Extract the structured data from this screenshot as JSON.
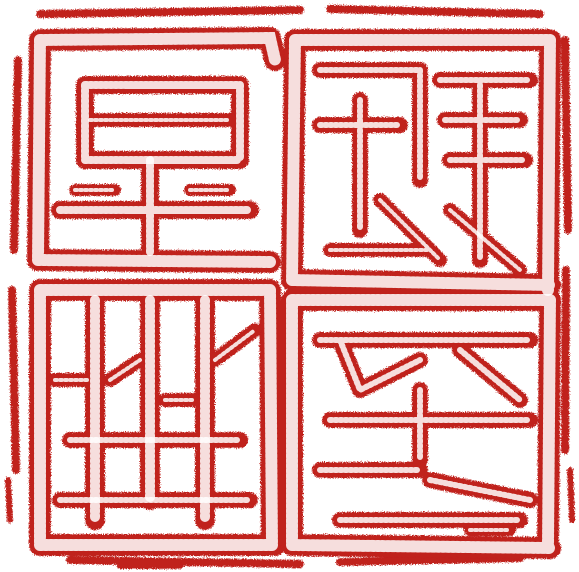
{
  "seal": {
    "ink_color": "#c0201f",
    "paper_color": "#ffffff",
    "style": "relief outline"
  }
}
